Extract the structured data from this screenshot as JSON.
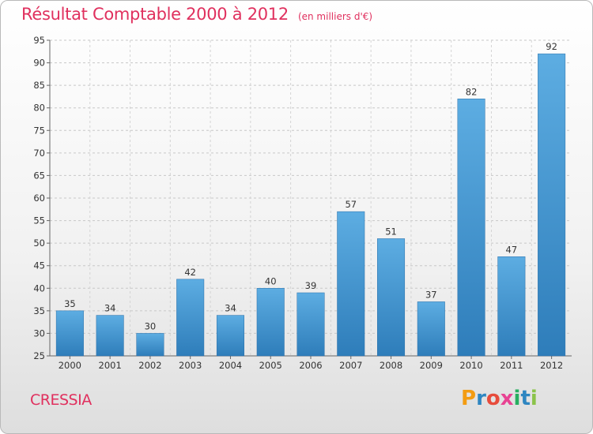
{
  "title": "Résultat Comptable 2000 à 2012",
  "subtitle": "(en milliers d'€)",
  "commune": "CRESSIA",
  "logo": {
    "letters": [
      "P",
      "r",
      "o",
      "x",
      "i",
      "t",
      "i"
    ],
    "colors": [
      "#f39c12",
      "#2e86c1",
      "#e74c3c",
      "#e84393",
      "#27ae60",
      "#2e86c1",
      "#8bc34a"
    ]
  },
  "chart_data": {
    "type": "bar",
    "title": "Résultat Comptable 2000 à 2012",
    "subtitle": "(en milliers d'€)",
    "categories": [
      "2000",
      "2001",
      "2002",
      "2003",
      "2004",
      "2005",
      "2006",
      "2007",
      "2008",
      "2009",
      "2010",
      "2011",
      "2012"
    ],
    "values": [
      35,
      34,
      30,
      42,
      34,
      40,
      39,
      57,
      51,
      37,
      82,
      47,
      92
    ],
    "ylim": [
      25,
      95
    ],
    "yticks": [
      25,
      30,
      35,
      40,
      45,
      50,
      55,
      60,
      65,
      70,
      75,
      80,
      85,
      90,
      95
    ],
    "grid": true,
    "bar_color_top": "#5dade2",
    "bar_color_bottom": "#2e7dba"
  }
}
